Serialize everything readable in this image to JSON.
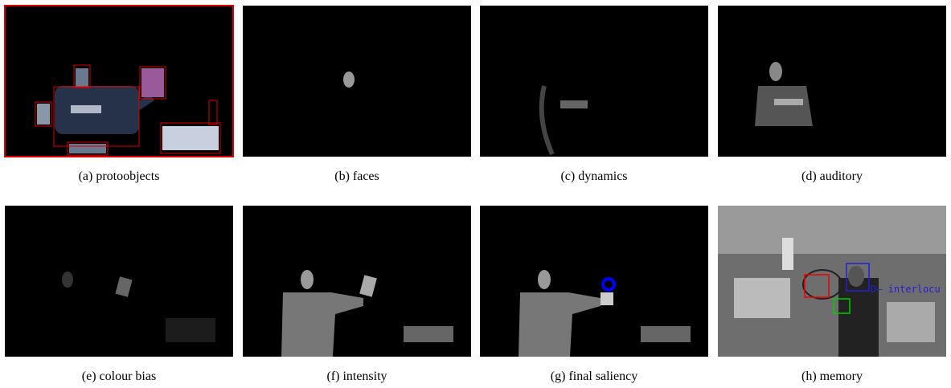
{
  "figure": {
    "panels": [
      {
        "caption": "(a) protoobjects"
      },
      {
        "caption": "(b) faces"
      },
      {
        "caption": "(c) dynamics"
      },
      {
        "caption": "(d) auditory"
      },
      {
        "caption": "(e) colour bias"
      },
      {
        "caption": "(f) intensity"
      },
      {
        "caption": "(g) final saliency"
      },
      {
        "caption": "(h) memory",
        "overlay_text": "D– interlocu"
      }
    ]
  }
}
